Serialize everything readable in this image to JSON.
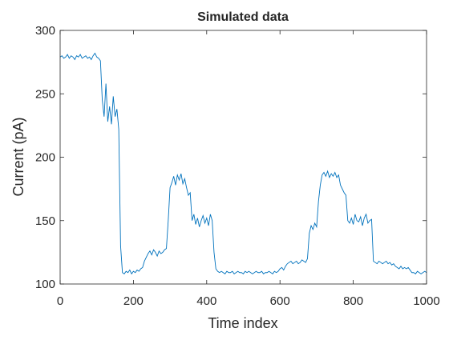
{
  "chart_data": {
    "type": "line",
    "title": "Simulated data",
    "xlabel": "Time index",
    "ylabel": "Current (pA)",
    "color": "#0072bd",
    "xlim": [
      0,
      1000
    ],
    "xticks": [
      0,
      200,
      400,
      600,
      800,
      1000
    ],
    "ylim": [
      100,
      300
    ],
    "yticks": [
      100,
      150,
      200,
      250,
      300
    ],
    "x": [
      0,
      5,
      10,
      15,
      20,
      25,
      30,
      35,
      40,
      45,
      50,
      55,
      60,
      65,
      70,
      75,
      80,
      85,
      90,
      95,
      100,
      105,
      110,
      115,
      120,
      125,
      130,
      135,
      140,
      145,
      150,
      155,
      160,
      165,
      170,
      175,
      180,
      185,
      190,
      195,
      200,
      205,
      210,
      215,
      220,
      225,
      230,
      235,
      240,
      245,
      250,
      255,
      260,
      265,
      270,
      275,
      280,
      285,
      290,
      295,
      300,
      305,
      310,
      315,
      320,
      325,
      330,
      335,
      340,
      345,
      350,
      355,
      360,
      365,
      370,
      375,
      380,
      385,
      390,
      395,
      400,
      405,
      410,
      415,
      420,
      425,
      430,
      435,
      440,
      445,
      450,
      455,
      460,
      465,
      470,
      475,
      480,
      485,
      490,
      495,
      500,
      505,
      510,
      515,
      520,
      525,
      530,
      535,
      540,
      545,
      550,
      555,
      560,
      565,
      570,
      575,
      580,
      585,
      590,
      595,
      600,
      605,
      610,
      615,
      620,
      625,
      630,
      635,
      640,
      645,
      650,
      655,
      660,
      665,
      670,
      675,
      680,
      685,
      690,
      695,
      700,
      705,
      710,
      715,
      720,
      725,
      730,
      735,
      740,
      745,
      750,
      755,
      760,
      765,
      770,
      775,
      780,
      785,
      790,
      795,
      800,
      805,
      810,
      815,
      820,
      825,
      830,
      835,
      840,
      845,
      850,
      855,
      860,
      865,
      870,
      875,
      880,
      885,
      890,
      895,
      900,
      905,
      910,
      915,
      920,
      925,
      930,
      935,
      940,
      945,
      950,
      955,
      960,
      965,
      970,
      975,
      980,
      985,
      990,
      995,
      1000
    ],
    "values": [
      279,
      280,
      278,
      279,
      281,
      278,
      280,
      279,
      277,
      280,
      279,
      281,
      278,
      279,
      280,
      278,
      279,
      277,
      280,
      282,
      279,
      278,
      276,
      245,
      232,
      258,
      228,
      240,
      226,
      248,
      232,
      238,
      222,
      130,
      109,
      108,
      110,
      109,
      111,
      108,
      110,
      109,
      111,
      110,
      112,
      113,
      118,
      121,
      124,
      126,
      123,
      127,
      125,
      122,
      126,
      124,
      125,
      127,
      128,
      150,
      176,
      180,
      185,
      178,
      186,
      182,
      187,
      179,
      183,
      176,
      170,
      172,
      150,
      155,
      147,
      152,
      145,
      150,
      154,
      148,
      152,
      146,
      155,
      150,
      125,
      112,
      110,
      109,
      110,
      109,
      108,
      110,
      109,
      109,
      110,
      108,
      109,
      110,
      109,
      109,
      108,
      110,
      109,
      110,
      109,
      108,
      109,
      110,
      109,
      109,
      110,
      108,
      109,
      109,
      110,
      109,
      108,
      110,
      109,
      110,
      112,
      113,
      111,
      114,
      116,
      117,
      118,
      116,
      117,
      118,
      116,
      117,
      119,
      118,
      117,
      120,
      140,
      146,
      143,
      148,
      145,
      165,
      178,
      186,
      188,
      185,
      189,
      184,
      187,
      185,
      188,
      184,
      186,
      178,
      175,
      172,
      170,
      150,
      148,
      152,
      147,
      155,
      150,
      149,
      153,
      146,
      152,
      155,
      148,
      150,
      151,
      118,
      117,
      116,
      118,
      117,
      116,
      117,
      118,
      116,
      117,
      115,
      116,
      114,
      113,
      112,
      114,
      112,
      113,
      112,
      113,
      111,
      109,
      109,
      108,
      110,
      109,
      108,
      109,
      110,
      109
    ]
  }
}
